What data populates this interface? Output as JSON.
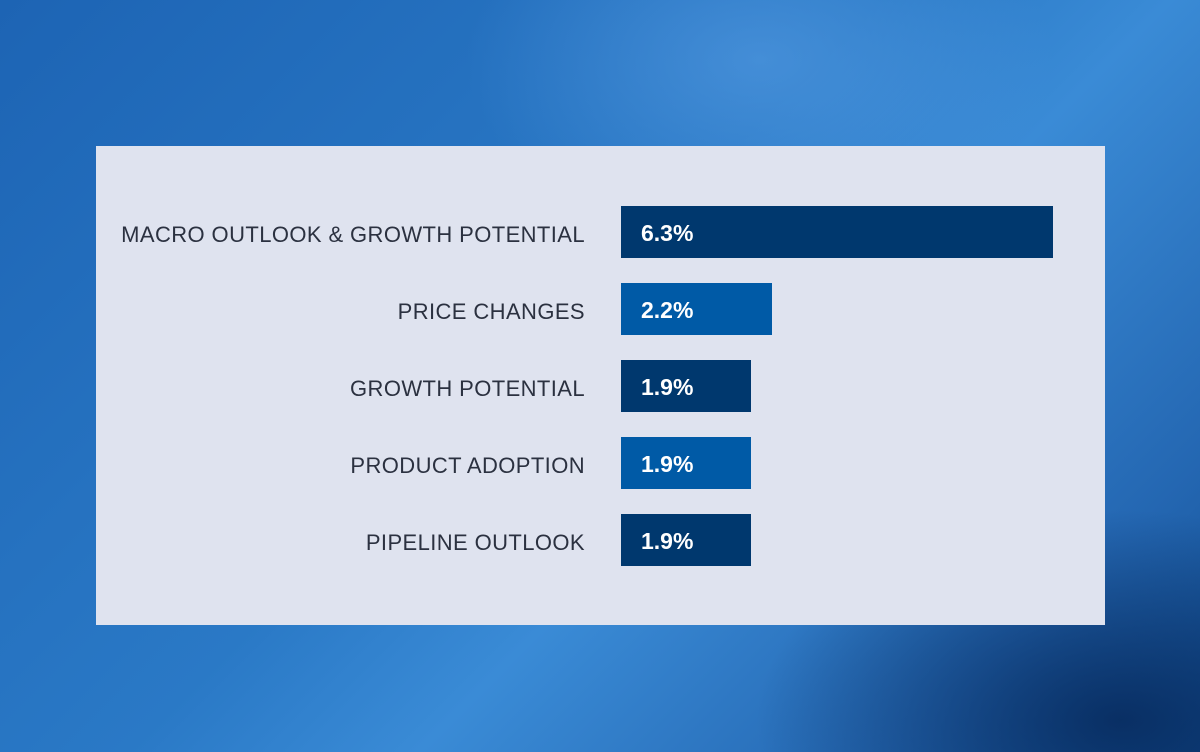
{
  "chart_data": {
    "type": "bar",
    "orientation": "horizontal",
    "title": "",
    "xlabel": "",
    "ylabel": "",
    "categories": [
      "MACRO OUTLOOK & GROWTH POTENTIAL",
      "PRICE CHANGES",
      "GROWTH POTENTIAL",
      "PRODUCT ADOPTION",
      "PIPELINE OUTLOOK"
    ],
    "values": [
      6.3,
      2.2,
      1.9,
      1.9,
      1.9
    ],
    "value_labels": [
      "6.3%",
      "2.2%",
      "1.9%",
      "1.9%",
      "1.9%"
    ],
    "bar_colors": [
      "#00386e",
      "#005aa6",
      "#00386e",
      "#005aa6",
      "#00386e"
    ],
    "xlim": [
      0,
      6.3
    ],
    "grid": false,
    "legend": "none"
  }
}
